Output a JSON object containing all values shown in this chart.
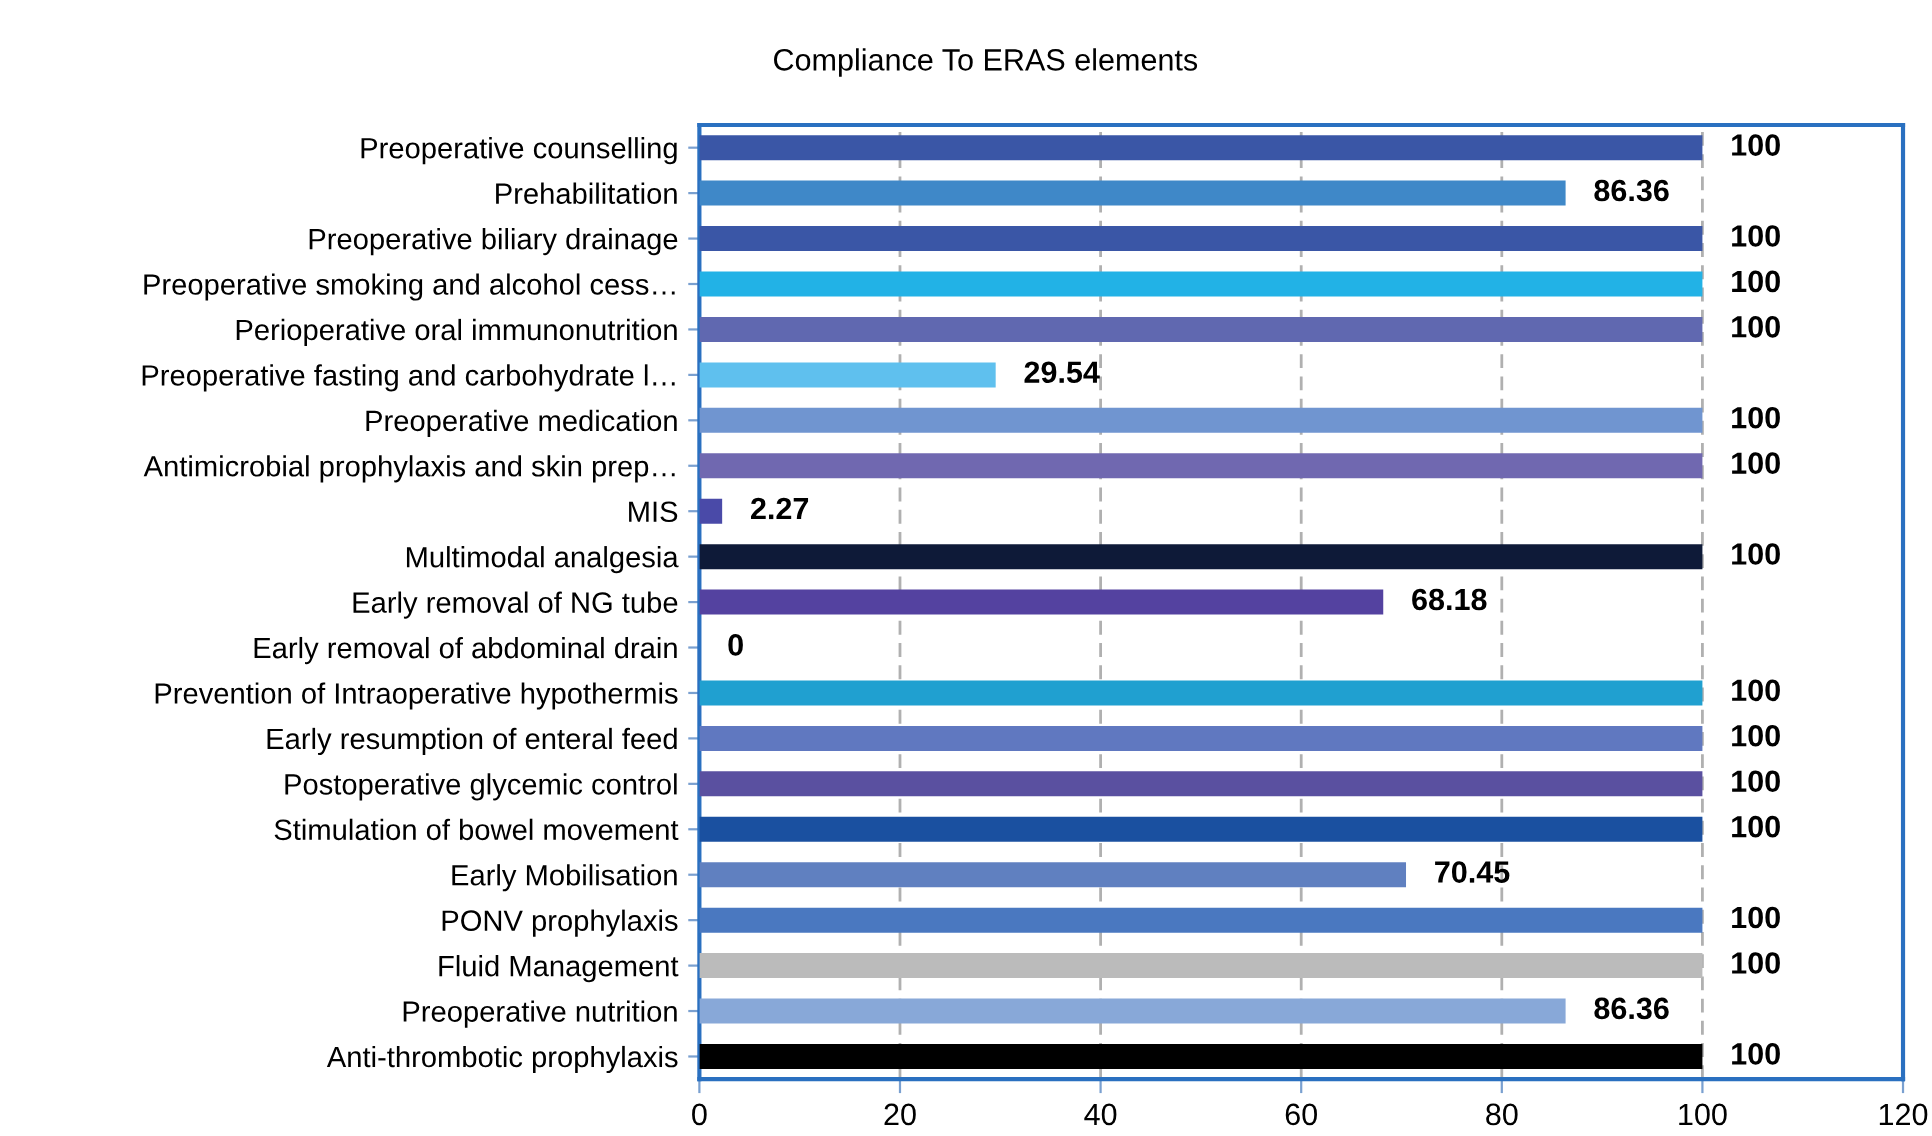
{
  "chart_data": {
    "type": "bar",
    "orientation": "horizontal",
    "title": "Compliance To ERAS elements",
    "categories": [
      "Preoperative counselling",
      "Prehabilitation",
      "Preoperative biliary drainage",
      "Preoperative smoking and alcohol cess…",
      "Perioperative oral immunonutrition",
      "Preoperative fasting and carbohydrate l…",
      "Preoperative medication",
      "Antimicrobial prophylaxis and skin prep…",
      "MIS",
      "Multimodal analgesia",
      "Early removal of NG tube",
      "Early removal of abdominal drain",
      "Prevention of Intraoperative hypothermis",
      "Early resumption of enteral feed",
      "Postoperative glycemic control",
      "Stimulation of bowel movement",
      "Early Mobilisation",
      "PONV prophylaxis",
      "Fluid Management",
      "Preoperative nutrition",
      "Anti-thrombotic prophylaxis"
    ],
    "values": [
      100,
      86.36,
      100,
      100,
      100,
      29.54,
      100,
      100,
      2.27,
      100,
      68.18,
      0,
      100,
      100,
      100,
      100,
      70.45,
      100,
      100,
      86.36,
      100
    ],
    "colors": [
      "#3a56a6",
      "#3f88c8",
      "#3a56a6",
      "#22b2e6",
      "#6068b0",
      "#5fc0ee",
      "#7095d0",
      "#7068b0",
      "#4a4aa8",
      "#0e1a38",
      "#5442a0",
      "#5442a0",
      "#20a0d0",
      "#6078c0",
      "#5a50a0",
      "#1a50a0",
      "#6080c0",
      "#4a78c0",
      "#bbbbbb",
      "#88a8d8",
      "#000000"
    ],
    "xlim": [
      0,
      120
    ],
    "xticks": [
      0,
      20,
      40,
      60,
      80,
      100,
      120
    ],
    "grid": "x",
    "data_labels": true
  }
}
